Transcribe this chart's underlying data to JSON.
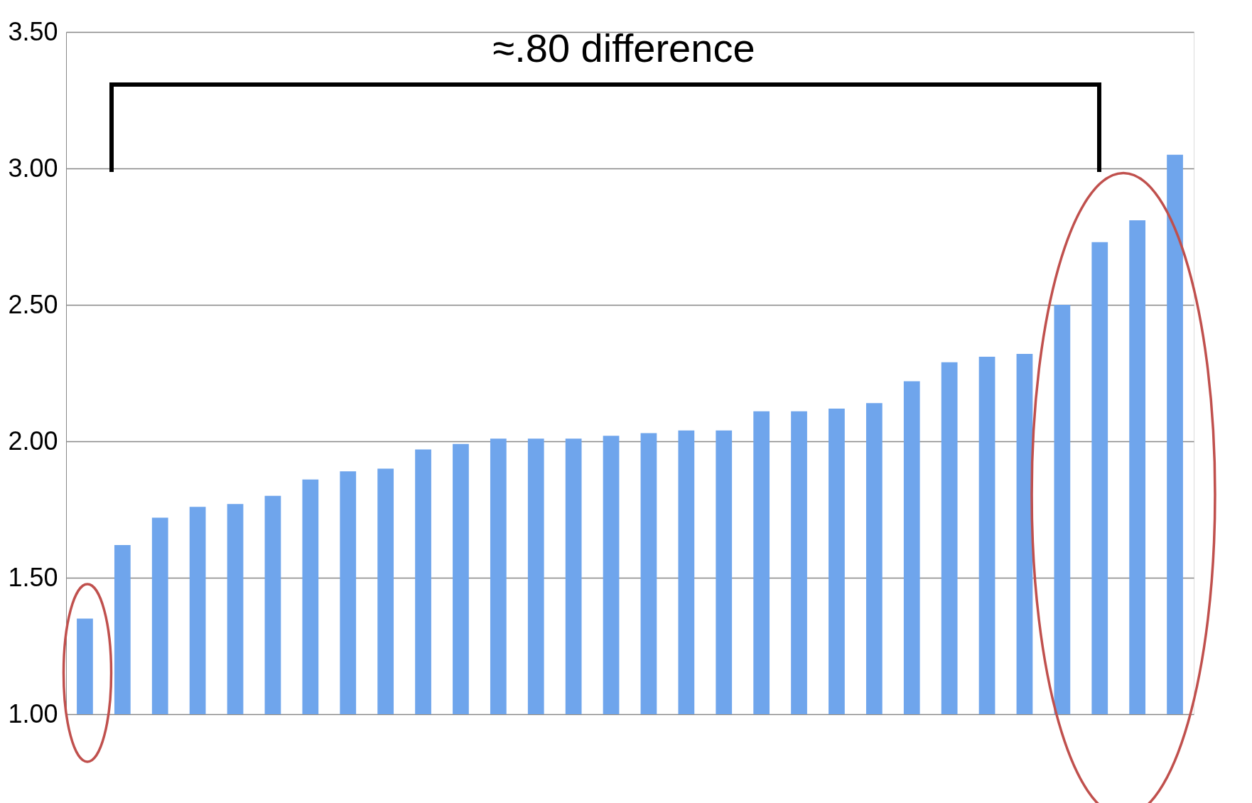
{
  "chart_data": {
    "type": "bar",
    "categories": [
      null,
      null,
      null,
      null,
      null,
      null,
      null,
      null,
      null,
      null,
      null,
      null,
      null,
      null,
      null,
      null,
      null,
      null,
      null,
      null,
      null,
      null,
      null,
      null,
      null,
      null,
      null,
      null,
      null,
      null
    ],
    "values": [
      1.35,
      1.62,
      1.72,
      1.76,
      1.77,
      1.8,
      1.86,
      1.89,
      1.9,
      1.97,
      1.99,
      2.01,
      2.01,
      2.01,
      2.02,
      2.03,
      2.04,
      2.04,
      2.11,
      2.11,
      2.12,
      2.14,
      2.22,
      2.29,
      2.31,
      2.32,
      2.5,
      2.73,
      2.81,
      3.05
    ],
    "color": "#6fa5ec",
    "ylim": [
      1,
      3.5
    ],
    "yticks": [
      {
        "value": 1,
        "label": "1.00"
      },
      {
        "value": 1.5,
        "label": "1.50"
      },
      {
        "value": 2,
        "label": "2.00"
      },
      {
        "value": 2.5,
        "label": "2.50"
      },
      {
        "value": 3,
        "label": "3.00"
      },
      {
        "value": 3.5,
        "label": "3.50"
      }
    ],
    "grid": "y",
    "tick_labels": "y",
    "annotations": [
      "≈.80 difference"
    ]
  }
}
